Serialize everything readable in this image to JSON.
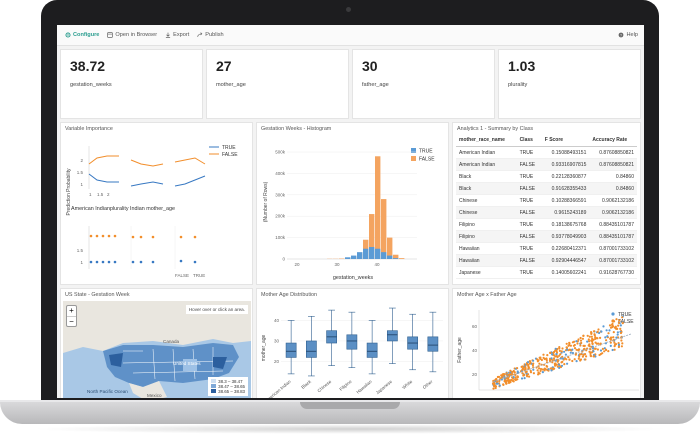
{
  "toolbar": {
    "configure": "Configure",
    "open_browser": "Open in Browser",
    "export": "Export",
    "publish": "Publish",
    "help": "Help"
  },
  "kpis": [
    {
      "value": "38.72",
      "label": "gestation_weeks"
    },
    {
      "value": "27",
      "label": "mother_age"
    },
    {
      "value": "30",
      "label": "father_age"
    },
    {
      "value": "1.03",
      "label": "plurality"
    }
  ],
  "panels": {
    "var_importance": "Variable Importance",
    "histogram": "Gestation Weeks - Histogram",
    "analytics": "Analytics 1 - Summary by Class",
    "us_state": "US State - Gestation Week",
    "mother_age_dist": "Mother Age Distribution",
    "mother_father": "Mother Age x Father Age"
  },
  "var_importance": {
    "legend": [
      "TRUE",
      "FALSE"
    ],
    "ylabel": "Prediction Probability",
    "xlabel": "American Indianplurality  Indian mother_age",
    "yticks_top": [
      "1",
      "1.5",
      "2"
    ],
    "xticks_top": [
      "1",
      "1.5",
      "2"
    ],
    "yticks_bottom": [
      "1",
      "1.5"
    ],
    "xticks_bottom": [
      "FALSE",
      "TRUE"
    ]
  },
  "histogram": {
    "ylabel": "(Number of Rows)",
    "xlabel": "gestation_weeks",
    "legend": [
      "TRUE",
      "FALSE"
    ],
    "colors": {
      "TRUE": "#5b9bd5",
      "FALSE": "#f4a460"
    }
  },
  "chart_data": [
    {
      "type": "bar",
      "xlabel": "gestation_weeks",
      "ylabel": "(Number of Rows)",
      "categories": [
        "31",
        "32",
        "33",
        "34",
        "35",
        "36",
        "37",
        "38",
        "39",
        "40",
        "41",
        "42",
        "43"
      ],
      "series": [
        {
          "name": "TRUE",
          "values": [
            0,
            0,
            0,
            2,
            4,
            8,
            12,
            14,
            12,
            8,
            4,
            1,
            0
          ]
        },
        {
          "name": "FALSE",
          "values": [
            1,
            1,
            2,
            3,
            8,
            24,
            90,
            210,
            480,
            280,
            100,
            20,
            4
          ]
        }
      ],
      "yticks": [
        "0",
        "100k",
        "200k",
        "300k",
        "400k",
        "500k"
      ],
      "xticks": [
        "20",
        "30",
        "40"
      ],
      "ylim": [
        0,
        500
      ]
    },
    {
      "type": "box",
      "ylabel": "mother_age",
      "categories": [
        "American Indian",
        "Black",
        "Chinese",
        "Filipino",
        "Hawaiian",
        "Japanese",
        "White",
        "Other"
      ],
      "boxes": [
        {
          "q1": 22,
          "median": 25,
          "q3": 29,
          "lo": 14,
          "hi": 40
        },
        {
          "q1": 22,
          "median": 25,
          "q3": 30,
          "lo": 13,
          "hi": 42
        },
        {
          "q1": 29,
          "median": 32,
          "q3": 35,
          "lo": 18,
          "hi": 45
        },
        {
          "q1": 26,
          "median": 30,
          "q3": 33,
          "lo": 17,
          "hi": 44
        },
        {
          "q1": 22,
          "median": 25,
          "q3": 29,
          "lo": 14,
          "hi": 40
        },
        {
          "q1": 30,
          "median": 33,
          "q3": 35,
          "lo": 19,
          "hi": 46
        },
        {
          "q1": 26,
          "median": 29,
          "q3": 32,
          "lo": 16,
          "hi": 43
        },
        {
          "q1": 25,
          "median": 28,
          "q3": 32,
          "lo": 15,
          "hi": 44
        }
      ],
      "yticks": [
        "20",
        "30",
        "40"
      ],
      "ylim": [
        12,
        47
      ]
    }
  ],
  "summary_table": {
    "headers": [
      "mother_race_name",
      "Class",
      "F Score",
      "Accuracy Rate"
    ],
    "rows": [
      [
        "American Indian",
        "TRUE",
        "0.15088493151",
        "0.87608850821"
      ],
      [
        "American Indian",
        "FALSE",
        "0.93316907815",
        "0.87608850821"
      ],
      [
        "Black",
        "TRUE",
        "0.22128360877",
        "0.84860"
      ],
      [
        "Black",
        "FALSE",
        "0.91628355433",
        "0.84860"
      ],
      [
        "Chinese",
        "TRUE",
        "0.10288366591",
        "0.9062132186"
      ],
      [
        "Chinese",
        "FALSE",
        "0.9615243189",
        "0.9062132186"
      ],
      [
        "Filipino",
        "TRUE",
        "0.18138675768",
        "0.88435101787"
      ],
      [
        "Filipino",
        "FALSE",
        "0.93778049903",
        "0.88435101787"
      ],
      [
        "Hawaiian",
        "TRUE",
        "0.22680412371",
        "0.87001733102"
      ],
      [
        "Hawaiian",
        "FALSE",
        "0.92904446547",
        "0.87001733102"
      ],
      [
        "Japanese",
        "TRUE",
        "0.14005602241",
        "0.91628767730"
      ]
    ]
  },
  "map": {
    "hover_hint": "Hover over or click an area.",
    "zoom_in": "+",
    "zoom_out": "−",
    "labels": [
      "Canada",
      "United States",
      "North Pacific Ocean",
      "Mexico"
    ],
    "legend": [
      "38.3 – 38.47",
      "38.47 – 38.65",
      "38.65 – 38.83"
    ]
  },
  "scatter": {
    "ylabel": "Father_age",
    "legend": [
      "TRUE",
      "FALSE"
    ],
    "colors": {
      "TRUE": "#5b9bd5",
      "FALSE": "#f28e2b"
    },
    "yticks": [
      "20",
      "40",
      "60"
    ]
  }
}
